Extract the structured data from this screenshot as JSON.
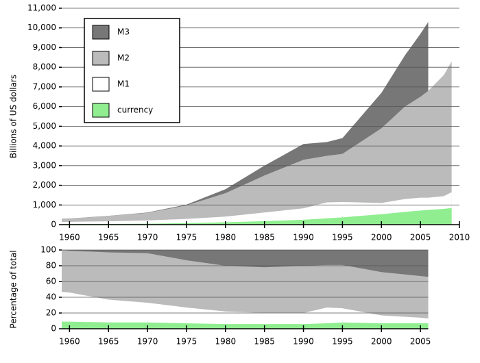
{
  "chart_data": [
    {
      "type": "area",
      "ylabel": "Billions of US dollars",
      "x": [
        1959,
        1960,
        1965,
        1970,
        1975,
        1980,
        1985,
        1990,
        1993,
        1995,
        2000,
        2003,
        2005,
        2006,
        2008,
        2009
      ],
      "series": [
        {
          "name": "M3",
          "color": "#777777",
          "values": [
            300,
            310,
            450,
            620,
            1020,
            1800,
            3000,
            4100,
            4200,
            4400,
            6700,
            8600,
            9700,
            10300,
            null,
            null
          ]
        },
        {
          "name": "M2",
          "color": "#bbbbbb",
          "values": [
            290,
            300,
            450,
            600,
            980,
            1600,
            2500,
            3300,
            3500,
            3600,
            4900,
            6000,
            6500,
            6800,
            7600,
            8300
          ]
        },
        {
          "name": "M1",
          "color": "#ffffff",
          "values": [
            140,
            145,
            170,
            215,
            290,
            410,
            620,
            830,
            1130,
            1150,
            1100,
            1300,
            1370,
            1370,
            1450,
            1650
          ]
        },
        {
          "name": "currency",
          "color": "#90ee90",
          "values": [
            30,
            32,
            40,
            50,
            80,
            120,
            180,
            250,
            320,
            370,
            530,
            650,
            720,
            750,
            800,
            850
          ]
        }
      ],
      "xlim": [
        1959,
        2010
      ],
      "xticks": [
        1960,
        1965,
        1970,
        1975,
        1980,
        1985,
        1990,
        1995,
        2000,
        2005,
        2010
      ],
      "ylim": [
        0,
        11000
      ],
      "yticks": [
        0,
        {
          "value": 1000,
          "label": "1,000"
        },
        {
          "value": 2000,
          "label": "2,000"
        },
        {
          "value": 3000,
          "label": "3,000"
        },
        {
          "value": 4000,
          "label": "4,000"
        },
        {
          "value": 5000,
          "label": "5,000"
        },
        {
          "value": 6000,
          "label": "6,000"
        },
        {
          "value": 7000,
          "label": "7,000"
        },
        {
          "value": 8000,
          "label": "8,000"
        },
        {
          "value": 9000,
          "label": "9,000"
        },
        {
          "value": 10000,
          "label": "10,000"
        },
        {
          "value": 11000,
          "label": "11,000"
        }
      ],
      "grid": true,
      "legend": "upper left"
    },
    {
      "type": "area",
      "ylabel": "Percentage of total",
      "x": [
        1959,
        1960,
        1965,
        1970,
        1975,
        1980,
        1985,
        1990,
        1993,
        1995,
        2000,
        2005,
        2006
      ],
      "series": [
        {
          "name": "M3",
          "color": "#777777",
          "values": [
            100,
            100,
            100,
            100,
            100,
            100,
            100,
            100,
            100,
            100,
            100,
            100,
            100
          ]
        },
        {
          "name": "M2",
          "color": "#bbbbbb",
          "values": [
            100,
            99,
            97,
            96,
            87,
            80,
            78,
            80,
            81,
            81,
            72,
            67,
            66
          ]
        },
        {
          "name": "M1",
          "color": "#ffffff",
          "values": [
            47,
            46,
            37,
            33,
            27,
            22,
            20,
            20,
            27,
            26,
            17,
            14,
            13
          ]
        },
        {
          "name": "currency",
          "color": "#90ee90",
          "values": [
            9,
            9,
            8,
            8,
            7,
            6,
            6,
            6,
            7,
            8,
            7,
            7,
            7
          ]
        }
      ],
      "xlim": [
        1959,
        2006
      ],
      "xticks": [
        1960,
        1965,
        1970,
        1975,
        1980,
        1985,
        1990,
        1995,
        2000,
        2005
      ],
      "ylim": [
        0,
        100
      ],
      "yticks": [
        0,
        20,
        40,
        60,
        80,
        100
      ],
      "grid": true
    }
  ]
}
